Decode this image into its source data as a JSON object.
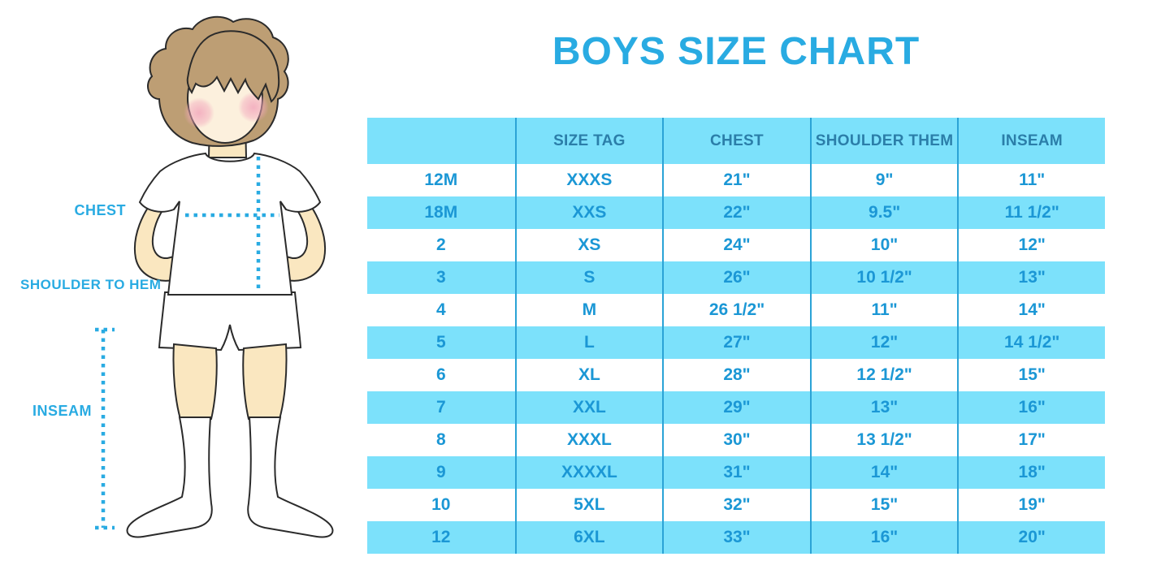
{
  "title": "BOYS SIZE CHART",
  "figure_labels": {
    "chest": "CHEST",
    "shoulder_to_hem": "SHOULDER TO HEM",
    "inseam": "INSEAM"
  },
  "colors": {
    "title_blue": "#29ABE2",
    "dotted_line_blue": "#29ABE2",
    "row_highlight_blue": "#7CE1FB",
    "column_divider_blue": "#2BA3D6",
    "header_text_blue": "#2B7EA9",
    "cell_text_blue": "#1B97D5",
    "skin": "#FAE7C0",
    "face": "#FCF0DD",
    "hair": "#BD9E74",
    "cheek_pink": "#F2A7BC"
  },
  "chart_data": {
    "type": "table",
    "title": "BOYS SIZE CHART",
    "columns": [
      "",
      "SIZE TAG",
      "CHEST",
      "SHOULDER THEM",
      "INSEAM"
    ],
    "rows": [
      [
        "12M",
        "XXXS",
        "21\"",
        "9\"",
        "11\""
      ],
      [
        "18M",
        "XXS",
        "22\"",
        "9.5\"",
        "11 1/2\""
      ],
      [
        "2",
        "XS",
        "24\"",
        "10\"",
        "12\""
      ],
      [
        "3",
        "S",
        "26\"",
        "10 1/2\"",
        "13\""
      ],
      [
        "4",
        "M",
        "26 1/2\"",
        "11\"",
        "14\""
      ],
      [
        "5",
        "L",
        "27\"",
        "12\"",
        "14 1/2\""
      ],
      [
        "6",
        "XL",
        "28\"",
        "12 1/2\"",
        "15\""
      ],
      [
        "7",
        "XXL",
        "29\"",
        "13\"",
        "16\""
      ],
      [
        "8",
        "XXXL",
        "30\"",
        "13 1/2\"",
        "17\""
      ],
      [
        "9",
        "XXXXL",
        "31\"",
        "14\"",
        "18\""
      ],
      [
        "10",
        "5XL",
        "32\"",
        "15\"",
        "19\""
      ],
      [
        "12",
        "6XL",
        "33\"",
        "16\"",
        "20\""
      ]
    ],
    "striping": "white and light-blue alternating rows, header light-blue",
    "legend_position": "none",
    "grid": "vertical column dividers only"
  }
}
